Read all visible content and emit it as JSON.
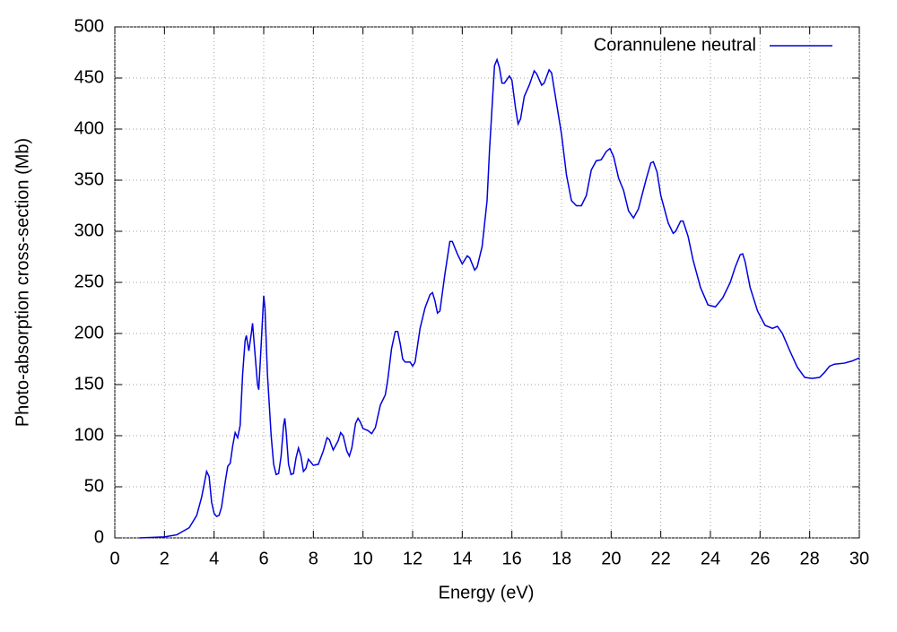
{
  "chart_data": {
    "type": "line",
    "xlabel": "Energy (eV)",
    "ylabel": "Photo-absorption cross-section (Mb)",
    "x": [
      1.0,
      2.0,
      2.5,
      3.0,
      3.3,
      3.5,
      3.7,
      3.8,
      3.9,
      4.0,
      4.1,
      4.2,
      4.3,
      4.45,
      4.55,
      4.65,
      4.75,
      4.85,
      4.95,
      5.05,
      5.15,
      5.25,
      5.3,
      5.4,
      5.5,
      5.55,
      5.65,
      5.75,
      5.8,
      5.9,
      6.0,
      6.05,
      6.15,
      6.3,
      6.4,
      6.5,
      6.6,
      6.7,
      6.8,
      6.85,
      6.9,
      7.0,
      7.1,
      7.2,
      7.3,
      7.4,
      7.5,
      7.6,
      7.7,
      7.8,
      7.9,
      8.0,
      8.2,
      8.4,
      8.55,
      8.65,
      8.8,
      9.0,
      9.1,
      9.2,
      9.35,
      9.45,
      9.55,
      9.7,
      9.8,
      9.9,
      10.0,
      10.2,
      10.35,
      10.5,
      10.7,
      10.9,
      11.0,
      11.15,
      11.3,
      11.4,
      11.5,
      11.6,
      11.7,
      11.9,
      12.0,
      12.1,
      12.3,
      12.5,
      12.7,
      12.8,
      12.9,
      13.0,
      13.1,
      13.3,
      13.5,
      13.6,
      13.8,
      14.0,
      14.2,
      14.3,
      14.5,
      14.6,
      14.8,
      15.0,
      15.1,
      15.3,
      15.4,
      15.5,
      15.6,
      15.7,
      15.9,
      16.0,
      16.15,
      16.25,
      16.35,
      16.5,
      16.7,
      16.9,
      17.0,
      17.2,
      17.3,
      17.5,
      17.6,
      17.8,
      18.0,
      18.2,
      18.4,
      18.6,
      18.8,
      19.0,
      19.2,
      19.4,
      19.6,
      19.8,
      19.95,
      20.1,
      20.3,
      20.5,
      20.7,
      20.9,
      21.1,
      21.4,
      21.6,
      21.7,
      21.85,
      22.0,
      22.3,
      22.5,
      22.6,
      22.8,
      22.9,
      23.1,
      23.3,
      23.6,
      23.9,
      24.2,
      24.5,
      24.8,
      25.0,
      25.2,
      25.3,
      25.4,
      25.6,
      25.9,
      26.2,
      26.5,
      26.7,
      26.9,
      27.2,
      27.5,
      27.8,
      28.1,
      28.4,
      28.6,
      28.8,
      29.0,
      29.4,
      29.7,
      30.0
    ],
    "series": [
      {
        "name": "Corannulene neutral",
        "color": "#0000e0",
        "values": [
          0,
          1,
          3,
          10,
          22,
          40,
          65,
          60,
          35,
          24,
          21,
          22,
          30,
          55,
          70,
          73,
          90,
          103,
          98,
          110,
          160,
          193,
          198,
          183,
          200,
          210,
          180,
          150,
          145,
          190,
          237,
          225,
          160,
          100,
          72,
          62,
          63,
          80,
          110,
          117,
          105,
          72,
          62,
          63,
          78,
          88,
          80,
          65,
          68,
          77,
          74,
          71,
          72,
          85,
          98,
          96,
          86,
          95,
          103,
          100,
          85,
          80,
          88,
          112,
          117,
          113,
          107,
          105,
          102,
          108,
          130,
          140,
          155,
          185,
          202,
          202,
          190,
          175,
          172,
          172,
          168,
          172,
          205,
          225,
          238,
          240,
          232,
          220,
          222,
          258,
          290,
          290,
          278,
          268,
          276,
          274,
          262,
          265,
          285,
          330,
          380,
          462,
          468,
          460,
          445,
          445,
          452,
          448,
          420,
          405,
          410,
          432,
          443,
          457,
          454,
          443,
          445,
          458,
          455,
          425,
          395,
          355,
          330,
          325,
          325,
          335,
          360,
          369,
          370,
          378,
          381,
          373,
          352,
          340,
          320,
          313,
          322,
          350,
          367,
          368,
          358,
          335,
          308,
          298,
          300,
          310,
          310,
          295,
          272,
          245,
          228,
          226,
          235,
          250,
          265,
          277,
          278,
          270,
          245,
          222,
          208,
          205,
          207,
          200,
          183,
          167,
          157,
          156,
          157,
          162,
          168,
          170,
          171,
          173,
          176
        ]
      }
    ],
    "xlim": [
      0,
      30
    ],
    "ylim": [
      0,
      500
    ],
    "xticks": [
      0,
      2,
      4,
      6,
      8,
      10,
      12,
      14,
      16,
      18,
      20,
      22,
      24,
      26,
      28,
      30
    ],
    "yticks": [
      0,
      50,
      100,
      150,
      200,
      250,
      300,
      350,
      400,
      450,
      500
    ],
    "grid": true,
    "legend": "upper right"
  }
}
